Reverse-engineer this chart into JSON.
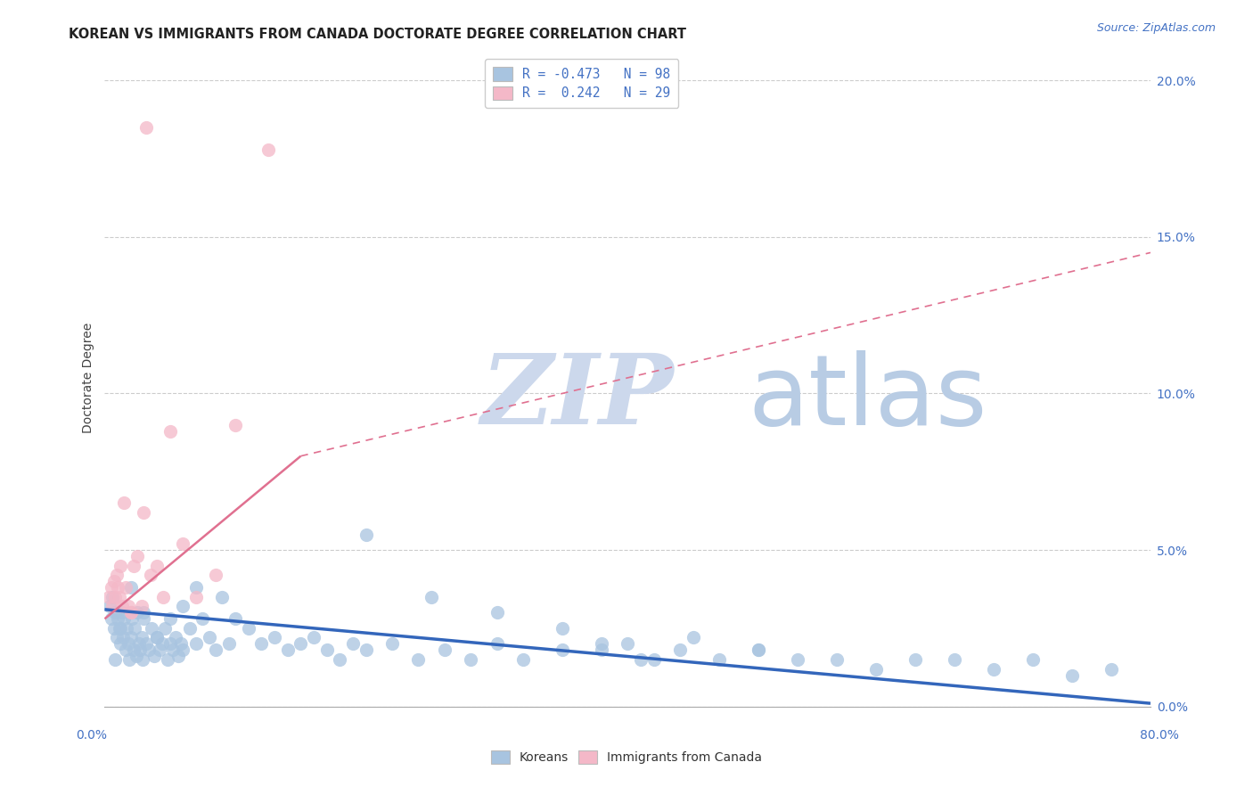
{
  "title": "KOREAN VS IMMIGRANTS FROM CANADA DOCTORATE DEGREE CORRELATION CHART",
  "source": "Source: ZipAtlas.com",
  "ylabel": "Doctorate Degree",
  "right_ytick_vals": [
    0.0,
    5.0,
    10.0,
    15.0,
    20.0
  ],
  "right_ytick_labels": [
    "0.0%",
    "5.0%",
    "10.0%",
    "15.0%",
    "20.0%"
  ],
  "xlim": [
    0,
    80
  ],
  "ylim": [
    0,
    21
  ],
  "legend_entry1": "R = -0.473   N = 98",
  "legend_entry2": "R =  0.242   N = 29",
  "korean_color": "#a8c4e0",
  "canada_color": "#f4b8c8",
  "korean_line_color": "#3366bb",
  "canada_line_color": "#e07090",
  "watermark_zip_color": "#ccd8ec",
  "watermark_atlas_color": "#b8cce4",
  "title_color": "#222222",
  "source_color": "#4472c4",
  "axis_tick_color": "#4472c4",
  "grid_color": "#cccccc",
  "korean_line_x0": 0,
  "korean_line_x1": 80,
  "korean_line_y0": 3.1,
  "korean_line_y1": 0.1,
  "canada_solid_x0": 0,
  "canada_solid_x1": 15,
  "canada_solid_y0": 2.8,
  "canada_solid_y1": 8.0,
  "canada_dash_x0": 15,
  "canada_dash_x1": 80,
  "canada_dash_y0": 8.0,
  "canada_dash_y1": 14.5,
  "korean_x": [
    0.4,
    0.5,
    0.6,
    0.7,
    0.8,
    0.9,
    1.0,
    1.1,
    1.2,
    1.3,
    1.4,
    1.5,
    1.6,
    1.7,
    1.8,
    1.9,
    2.0,
    2.1,
    2.2,
    2.3,
    2.4,
    2.5,
    2.6,
    2.7,
    2.8,
    2.9,
    3.0,
    3.2,
    3.4,
    3.6,
    3.8,
    4.0,
    4.2,
    4.4,
    4.6,
    4.8,
    5.0,
    5.2,
    5.4,
    5.6,
    5.8,
    6.0,
    6.5,
    7.0,
    7.5,
    8.0,
    8.5,
    9.0,
    9.5,
    10.0,
    11.0,
    12.0,
    13.0,
    14.0,
    15.0,
    16.0,
    17.0,
    18.0,
    19.0,
    20.0,
    22.0,
    24.0,
    26.0,
    28.0,
    30.0,
    32.0,
    35.0,
    38.0,
    41.0,
    44.0,
    47.0,
    50.0,
    53.0,
    56.0,
    59.0,
    62.0,
    65.0,
    68.0,
    71.0,
    74.0,
    77.0,
    30.0,
    35.0,
    40.0,
    45.0,
    50.0,
    20.0,
    25.0,
    38.0,
    42.0,
    0.8,
    1.2,
    2.0,
    3.0,
    4.0,
    5.0,
    6.0,
    7.0
  ],
  "korean_y": [
    3.2,
    2.8,
    3.5,
    2.5,
    3.0,
    2.2,
    2.8,
    2.5,
    2.0,
    3.0,
    2.2,
    2.8,
    1.8,
    2.5,
    2.0,
    1.5,
    2.2,
    2.8,
    1.8,
    2.5,
    1.6,
    3.0,
    2.0,
    1.8,
    2.2,
    1.5,
    2.8,
    2.0,
    1.8,
    2.5,
    1.6,
    2.2,
    1.8,
    2.0,
    2.5,
    1.5,
    2.0,
    1.8,
    2.2,
    1.6,
    2.0,
    1.8,
    2.5,
    2.0,
    2.8,
    2.2,
    1.8,
    3.5,
    2.0,
    2.8,
    2.5,
    2.0,
    2.2,
    1.8,
    2.0,
    2.2,
    1.8,
    1.5,
    2.0,
    1.8,
    2.0,
    1.5,
    1.8,
    1.5,
    2.0,
    1.5,
    1.8,
    2.0,
    1.5,
    1.8,
    1.5,
    1.8,
    1.5,
    1.5,
    1.2,
    1.5,
    1.5,
    1.2,
    1.5,
    1.0,
    1.2,
    3.0,
    2.5,
    2.0,
    2.2,
    1.8,
    5.5,
    3.5,
    1.8,
    1.5,
    1.5,
    2.5,
    3.8,
    3.0,
    2.2,
    2.8,
    3.2,
    3.8
  ],
  "canada_x": [
    0.3,
    0.5,
    0.6,
    0.7,
    0.8,
    0.9,
    1.0,
    1.1,
    1.2,
    1.3,
    1.5,
    1.6,
    1.8,
    2.0,
    2.2,
    2.5,
    2.8,
    3.0,
    3.5,
    4.0,
    4.5,
    5.0,
    6.0,
    7.0,
    8.5,
    10.0,
    12.5,
    2.0,
    3.2
  ],
  "canada_y": [
    3.5,
    3.8,
    3.2,
    4.0,
    3.5,
    4.2,
    3.8,
    3.5,
    4.5,
    3.2,
    6.5,
    3.8,
    3.2,
    3.0,
    4.5,
    4.8,
    3.2,
    6.2,
    4.2,
    4.5,
    3.5,
    8.8,
    5.2,
    3.5,
    4.2,
    9.0,
    17.8,
    3.0,
    18.5
  ]
}
